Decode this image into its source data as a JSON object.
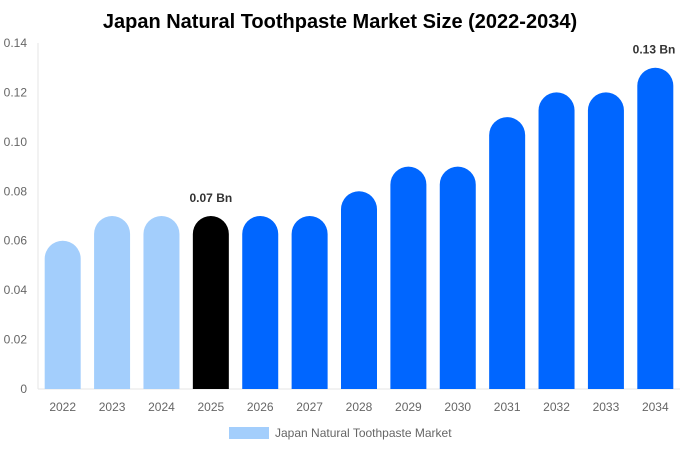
{
  "chart_data": {
    "type": "bar",
    "title": "Japan Natural Toothpaste Market Size (2022-2034)",
    "categories": [
      "2022",
      "2023",
      "2024",
      "2025",
      "2026",
      "2027",
      "2028",
      "2029",
      "2030",
      "2031",
      "2032",
      "2033",
      "2034"
    ],
    "series": [
      {
        "name": "Japan Natural Toothpaste Market",
        "values": [
          0.06,
          0.07,
          0.07,
          0.07,
          0.07,
          0.07,
          0.08,
          0.09,
          0.09,
          0.11,
          0.12,
          0.12,
          0.13
        ]
      }
    ],
    "bar_colors": [
      "#a3cefc",
      "#a3cefc",
      "#a3cefc",
      "#000000",
      "#0066ff",
      "#0066ff",
      "#0066ff",
      "#0066ff",
      "#0066ff",
      "#0066ff",
      "#0066ff",
      "#0066ff",
      "#0066ff"
    ],
    "data_labels": [
      {
        "index": 3,
        "text": "0.07 Bn"
      },
      {
        "index": 12,
        "text": "0.13 Bn"
      }
    ],
    "ylim": [
      0,
      0.14
    ],
    "yticks": [
      "0",
      "0.02",
      "0.04",
      "0.06",
      "0.08",
      "0.10",
      "0.12",
      "0.14"
    ],
    "xlabel": "",
    "ylabel": "",
    "grid": false,
    "legend_position": "bottom",
    "legend_color": "#a3cefc"
  }
}
